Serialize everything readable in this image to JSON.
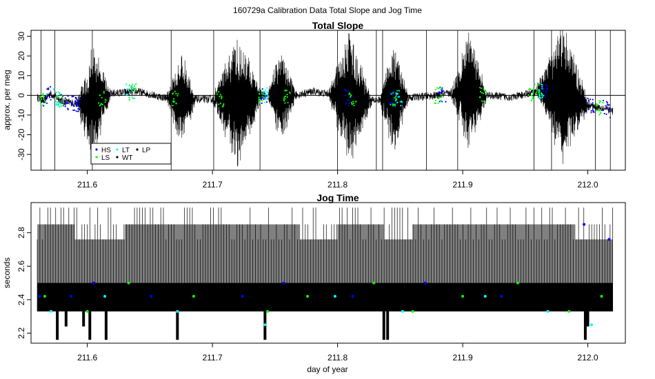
{
  "figure_title": "160729a   Calibration Data Total Slope and Jog Time",
  "colors": {
    "HS": "#0000ff",
    "LS": "#00ff00",
    "LT": "#00ffff",
    "WT": "#000000",
    "LP": "#000000",
    "trace": "#000000",
    "jog_fill": "#808080"
  },
  "chart_data": [
    {
      "type": "line",
      "title": "Total Slope",
      "xlabel": "",
      "ylabel": "approx. per meg",
      "xlim": [
        211.555,
        212.03
      ],
      "ylim": [
        -38,
        33
      ],
      "x_ticks": [
        "211.6",
        "211.7",
        "211.8",
        "211.9",
        "212.0"
      ],
      "y_ticks": [
        "30",
        "20",
        "10",
        "0",
        "-10",
        "-20",
        "-30"
      ],
      "hline": 0,
      "grid": false,
      "legend_position": "bottom-left",
      "legend": [
        "HS",
        "LS",
        "LT",
        "WT",
        "LP"
      ],
      "baseline_x": [
        211.56,
        211.565,
        211.57,
        211.58,
        211.59,
        211.6,
        211.62,
        211.64,
        211.66,
        211.68,
        211.7,
        211.72,
        211.74,
        211.76,
        211.78,
        211.8,
        211.82,
        211.84,
        211.86,
        211.88,
        211.9,
        211.92,
        211.94,
        211.96,
        211.98,
        212.0,
        212.01,
        212.02
      ],
      "baseline_y": [
        -1,
        -3,
        1,
        -3,
        -4,
        -5,
        1,
        2,
        -1,
        -2,
        -2,
        -3,
        0,
        -1,
        2,
        0,
        -3,
        -2,
        -1,
        0,
        2,
        0,
        -1,
        2,
        1,
        -5,
        -6,
        -8
      ],
      "bursts": [
        {
          "center": 211.605,
          "halfwidth": 0.014,
          "amp": 30
        },
        {
          "center": 211.675,
          "halfwidth": 0.012,
          "amp": 25
        },
        {
          "center": 211.72,
          "halfwidth": 0.02,
          "amp": 35
        },
        {
          "center": 211.755,
          "halfwidth": 0.012,
          "amp": 25
        },
        {
          "center": 211.81,
          "halfwidth": 0.018,
          "amp": 35
        },
        {
          "center": 211.845,
          "halfwidth": 0.012,
          "amp": 30
        },
        {
          "center": 211.905,
          "halfwidth": 0.015,
          "amp": 30
        },
        {
          "center": 211.98,
          "halfwidth": 0.022,
          "amp": 35
        }
      ],
      "spikes_x": [
        211.563,
        211.574,
        211.604,
        211.667,
        211.701,
        211.738,
        211.8,
        211.831,
        211.836,
        211.871,
        211.896,
        211.957,
        211.971,
        212.006,
        212.018
      ],
      "points": [
        {
          "series": "HS",
          "x": [
            211.568,
            211.582,
            211.59,
            211.593,
            211.741,
            211.809,
            211.844,
            211.884,
            211.965,
            212.002,
            212.015
          ]
        },
        {
          "series": "LS",
          "x": [
            211.565,
            211.578,
            211.612,
            211.636,
            211.67,
            211.706,
            211.74,
            211.76,
            211.812,
            211.845,
            211.88,
            211.916,
            211.955,
            211.962,
            212.009
          ]
        },
        {
          "series": "LT",
          "x": [
            211.576,
            211.634,
            211.743,
            211.849,
            211.963
          ]
        }
      ]
    },
    {
      "type": "line",
      "title": "Jog Time",
      "xlabel": "day of year",
      "ylabel": "seconds",
      "xlim": [
        211.555,
        212.03
      ],
      "ylim": [
        2.14,
        2.98
      ],
      "x_ticks": [
        "211.6",
        "211.7",
        "211.8",
        "211.9",
        "212.0"
      ],
      "y_ticks": [
        "2.8",
        "2.6",
        "2.4",
        "2.2"
      ],
      "grid": false,
      "levels": [
        2.33,
        2.42,
        2.5,
        2.76,
        2.85,
        2.95
      ],
      "low_spikes_x": [
        211.576,
        211.583,
        211.597,
        211.602,
        211.615,
        211.672,
        211.742,
        211.837,
        211.84,
        211.998,
        212.0
      ],
      "low_spike_levels": [
        2.16,
        2.24,
        2.24,
        2.16,
        2.16,
        2.16,
        2.16,
        2.16,
        2.16,
        2.16,
        2.24
      ],
      "segments": [
        {
          "x0": 211.56,
          "x1": 211.59,
          "top": 2.85
        },
        {
          "x0": 211.59,
          "x1": 211.63,
          "top": 2.76
        },
        {
          "x0": 211.63,
          "x1": 211.77,
          "top": 2.85
        },
        {
          "x0": 211.77,
          "x1": 211.8,
          "top": 2.76
        },
        {
          "x0": 211.8,
          "x1": 211.837,
          "top": 2.85
        },
        {
          "x0": 211.837,
          "x1": 211.86,
          "top": 2.76
        },
        {
          "x0": 211.86,
          "x1": 211.99,
          "top": 2.85
        },
        {
          "x0": 211.99,
          "x1": 212.02,
          "top": 2.76
        }
      ],
      "points": [
        {
          "series": "HS",
          "x": [
            211.562,
            211.587,
            211.605,
            211.651,
            211.724,
            211.757,
            211.812,
            211.87,
            211.931,
            211.997,
            212.017
          ],
          "y": [
            2.42,
            2.42,
            2.5,
            2.42,
            2.42,
            2.5,
            2.42,
            2.5,
            2.42,
            2.85,
            2.76
          ]
        },
        {
          "series": "LS",
          "x": [
            211.566,
            211.6,
            211.633,
            211.685,
            211.744,
            211.776,
            211.829,
            211.86,
            211.9,
            211.944,
            211.985,
            212.011
          ],
          "y": [
            2.42,
            2.33,
            2.5,
            2.42,
            2.33,
            2.42,
            2.5,
            2.33,
            2.42,
            2.5,
            2.33,
            2.42
          ]
        },
        {
          "series": "LT",
          "x": [
            211.571,
            211.614,
            211.672,
            211.742,
            211.798,
            211.852,
            211.918,
            211.968,
            212.003
          ],
          "y": [
            2.33,
            2.42,
            2.33,
            2.25,
            2.42,
            2.33,
            2.42,
            2.33,
            2.25
          ]
        }
      ]
    }
  ]
}
